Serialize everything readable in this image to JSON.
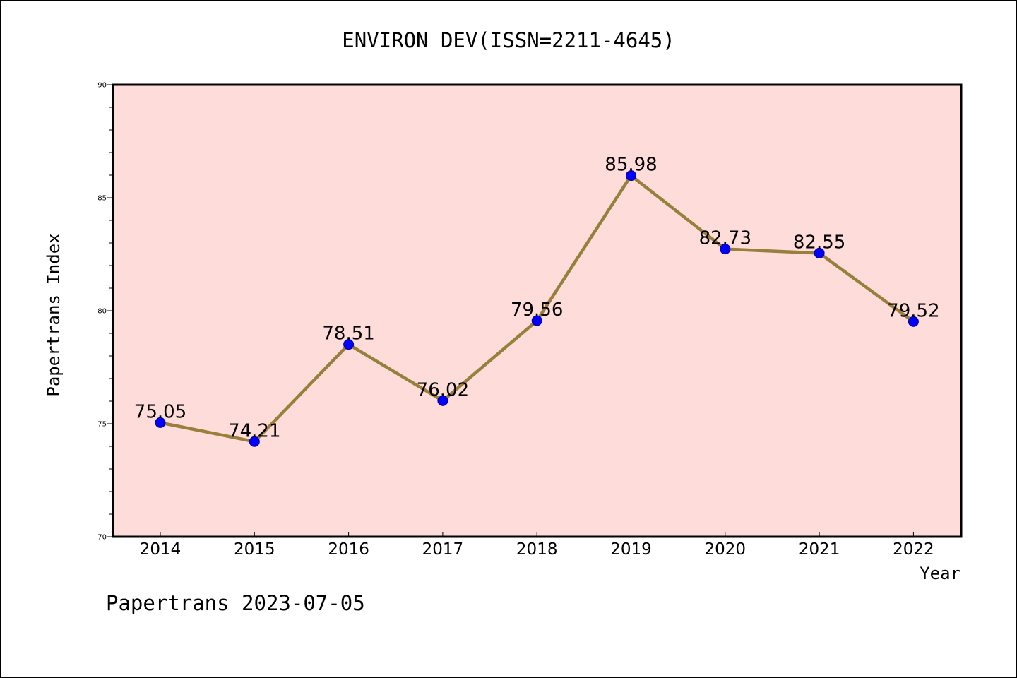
{
  "colors": {
    "plot_background": "#fddcda",
    "line": "#9a7f3c",
    "marker": "#0000ff",
    "axes": "#000000"
  },
  "footer": {
    "credit": "Papertrans 2023-07-05"
  },
  "chart_data": {
    "type": "line",
    "title": "ENVIRON DEV(ISSN=2211-4645)",
    "xlabel": "Year",
    "ylabel": "Papertrans Index",
    "categories": [
      "2014",
      "2015",
      "2016",
      "2017",
      "2018",
      "2019",
      "2020",
      "2021",
      "2022"
    ],
    "values": [
      75.05,
      74.21,
      78.51,
      76.02,
      79.56,
      85.98,
      82.73,
      82.55,
      79.52
    ],
    "data_labels": [
      "75.05",
      "74.21",
      "78.51",
      "76.02",
      "79.56",
      "85.98",
      "82.73",
      "82.55",
      "79.52"
    ],
    "ylim": [
      70,
      90
    ],
    "yticks": [
      70,
      75,
      80,
      85,
      90
    ],
    "yticks_minor_step": 1,
    "grid": false,
    "legend": "none"
  }
}
